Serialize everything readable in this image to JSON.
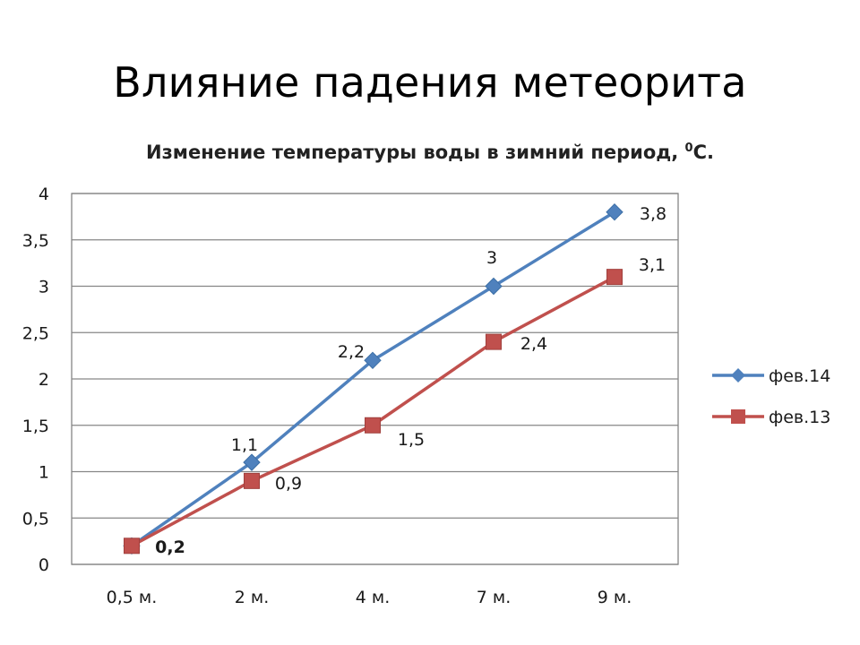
{
  "slide": {
    "title": "Влияние падения метеорита"
  },
  "chart_data": {
    "type": "line",
    "title_text": "Изменение температуры воды в зимний период, ",
    "title_sup": "0",
    "title_unit": "С.",
    "categories": [
      "0,5 м.",
      "2 м.",
      "4 м.",
      "7 м.",
      "9 м."
    ],
    "ylim": [
      0,
      4
    ],
    "yticks": [
      0,
      0.5,
      1,
      1.5,
      2,
      2.5,
      3,
      3.5,
      4
    ],
    "ytick_labels": [
      "0",
      "0,5",
      "1",
      "1,5",
      "2",
      "2,5",
      "3",
      "3,5",
      "4"
    ],
    "grid": true,
    "legend_position": "right",
    "series": [
      {
        "name": "фев.14",
        "color": "#4F81BD",
        "marker": "diamond",
        "values": [
          0.2,
          1.1,
          2.2,
          3,
          3.8
        ],
        "labels": [
          "",
          "1,1",
          "2,2",
          "3",
          "3,8"
        ]
      },
      {
        "name": "фев.13",
        "color": "#C0504D",
        "marker": "square",
        "values": [
          0.2,
          0.9,
          1.5,
          2.4,
          3.1
        ],
        "labels": [
          "0,2",
          "0,9",
          "1,5",
          "2,4",
          "3,1"
        ]
      }
    ]
  }
}
